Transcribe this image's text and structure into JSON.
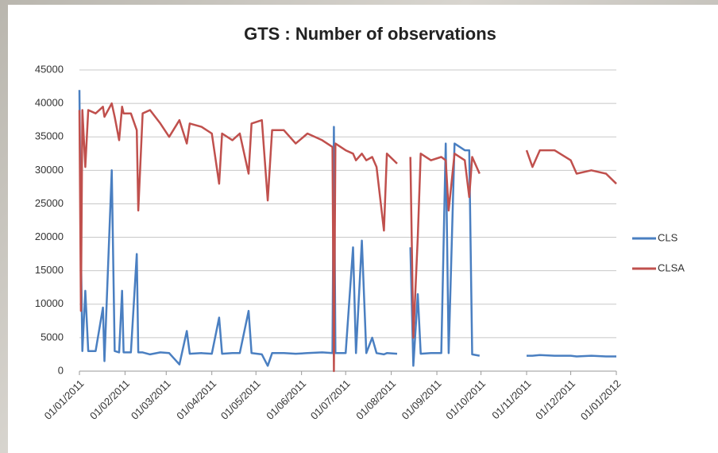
{
  "chart_data": {
    "type": "line",
    "title": "GTS : Number of observations",
    "x": [
      "01/01/2011",
      "02/01/2011",
      "03/01/2011",
      "05/01/2011",
      "07/01/2011",
      "12/01/2011",
      "17/01/2011",
      "18/01/2011",
      "23/01/2011",
      "25/01/2011",
      "28/01/2011",
      "30/01/2011",
      "31/01/2011",
      "05/02/2011",
      "09/02/2011",
      "10/02/2011",
      "13/02/2011",
      "18/02/2011",
      "25/02/2011",
      "03/03/2011",
      "10/03/2011",
      "15/03/2011",
      "17/03/2011",
      "25/03/2011",
      "01/04/2011",
      "06/04/2011",
      "08/04/2011",
      "15/04/2011",
      "20/04/2011",
      "26/04/2011",
      "28/04/2011",
      "05/05/2011",
      "09/05/2011",
      "12/05/2011",
      "20/05/2011",
      "28/05/2011",
      "05/06/2011",
      "15/06/2011",
      "22/06/2011",
      "23/06/2011",
      "24/06/2011",
      "01/07/2011",
      "06/07/2011",
      "08/07/2011",
      "12/07/2011",
      "15/07/2011",
      "19/07/2011",
      "22/07/2011",
      "27/07/2011",
      "29/07/2011",
      "05/08/2011",
      "06/08/2011",
      "14/08/2011",
      "16/08/2011",
      "19/08/2011",
      "21/08/2011",
      "28/08/2011",
      "04/09/2011",
      "07/09/2011",
      "09/09/2011",
      "13/09/2011",
      "20/09/2011",
      "23/09/2011",
      "25/09/2011",
      "30/09/2011",
      "01/10/2011",
      "01/11/2011",
      "05/11/2011",
      "10/11/2011",
      "20/11/2011",
      "01/12/2011",
      "05/12/2011",
      "15/12/2011",
      "25/12/2011",
      "01/01/2012"
    ],
    "series": [
      {
        "name": "CLS",
        "color": "#4a7fc1",
        "values": [
          42000,
          18000,
          3000,
          12000,
          3000,
          3000,
          9500,
          1500,
          30000,
          3000,
          2800,
          12000,
          2800,
          2800,
          17500,
          2800,
          2800,
          2500,
          2800,
          2700,
          1000,
          6000,
          2600,
          2700,
          2600,
          8000,
          2600,
          2700,
          2700,
          9000,
          2700,
          2500,
          800,
          2700,
          2700,
          2600,
          2700,
          2800,
          2700,
          36500,
          2700,
          2700,
          18500,
          2700,
          19500,
          2700,
          5000,
          2700,
          2500,
          2700,
          2600,
          null,
          18500,
          800,
          11500,
          2600,
          2700,
          2700,
          34000,
          2700,
          34000,
          33000,
          33000,
          2500,
          2300,
          null,
          2300,
          2300,
          2400,
          2300,
          2300,
          2200,
          2300,
          2200,
          2200
        ]
      },
      {
        "name": "CLSA",
        "color": "#c0504d",
        "values": [
          39000,
          9000,
          39000,
          30500,
          39000,
          38500,
          39500,
          38000,
          40000,
          38000,
          34500,
          39500,
          38500,
          38500,
          36000,
          24000,
          38500,
          39000,
          37000,
          35000,
          37500,
          34000,
          37000,
          36500,
          35500,
          28000,
          35500,
          34500,
          35500,
          29500,
          37000,
          37500,
          25500,
          36000,
          36000,
          34000,
          35500,
          34500,
          33500,
          0,
          34000,
          33000,
          32500,
          31500,
          32500,
          31500,
          32000,
          30500,
          21000,
          32500,
          31000,
          null,
          32000,
          5000,
          20000,
          32500,
          31500,
          32000,
          31500,
          24000,
          32500,
          31500,
          26000,
          32000,
          29500,
          null,
          33000,
          30500,
          33000,
          33000,
          31500,
          29500,
          30000,
          29500,
          28000
        ]
      }
    ],
    "xlim": [
      "01/01/2011",
      "01/01/2012"
    ],
    "xticks": [
      "01/01/2011",
      "01/02/2011",
      "01/03/2011",
      "01/04/2011",
      "01/05/2011",
      "01/06/2011",
      "01/07/2011",
      "01/08/2011",
      "01/09/2011",
      "01/10/2011",
      "01/11/2011",
      "01/12/2011",
      "01/01/2012"
    ],
    "ylim": [
      0,
      45000
    ],
    "yticks": [
      0,
      5000,
      10000,
      15000,
      20000,
      25000,
      30000,
      35000,
      40000,
      45000
    ],
    "grid": true,
    "legend": "right"
  }
}
